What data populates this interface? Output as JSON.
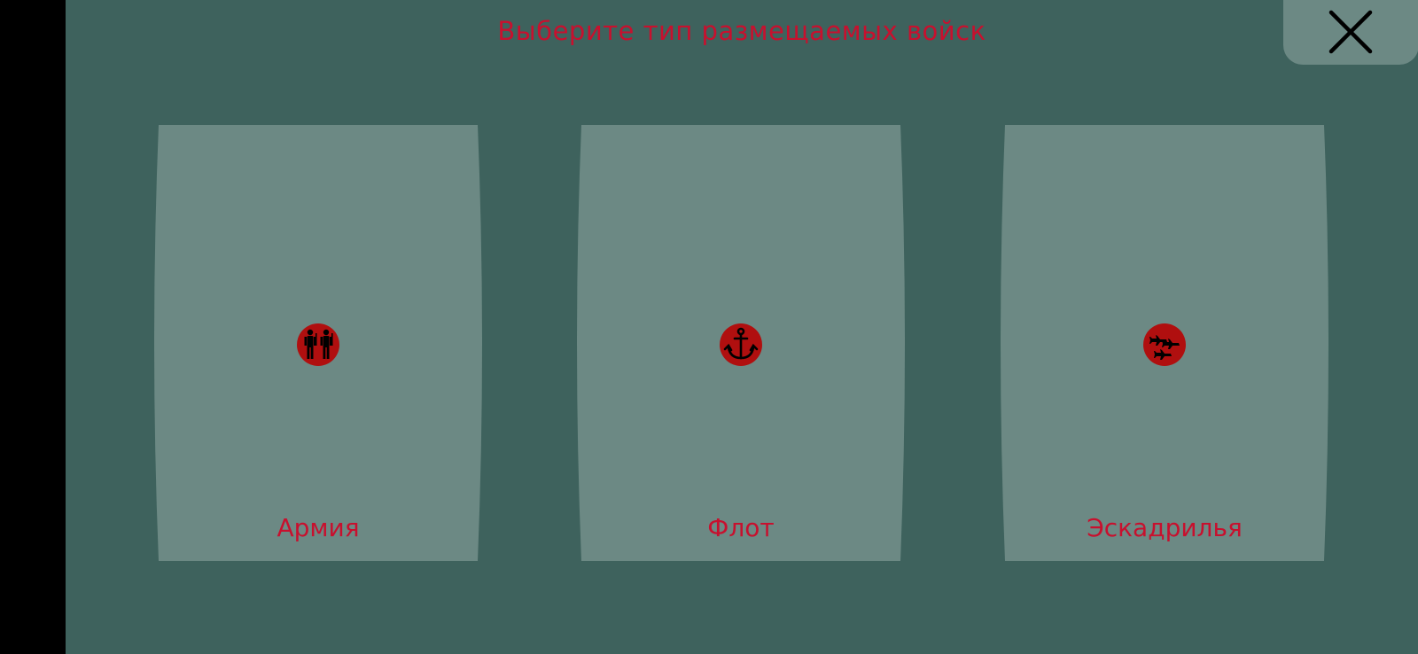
{
  "dialog": {
    "title": "Выберите тип размещаемых войск",
    "close_icon": "close-icon",
    "colors": {
      "panel": "#3e625d",
      "card": "#6c8984",
      "accent": "#c8102e",
      "icon_fill": "#b00f0f"
    }
  },
  "troop_types": [
    {
      "label": "Армия",
      "icon": "soldiers-icon"
    },
    {
      "label": "Флот",
      "icon": "anchor-icon"
    },
    {
      "label": "Эскадрилья",
      "icon": "jets-icon"
    }
  ]
}
